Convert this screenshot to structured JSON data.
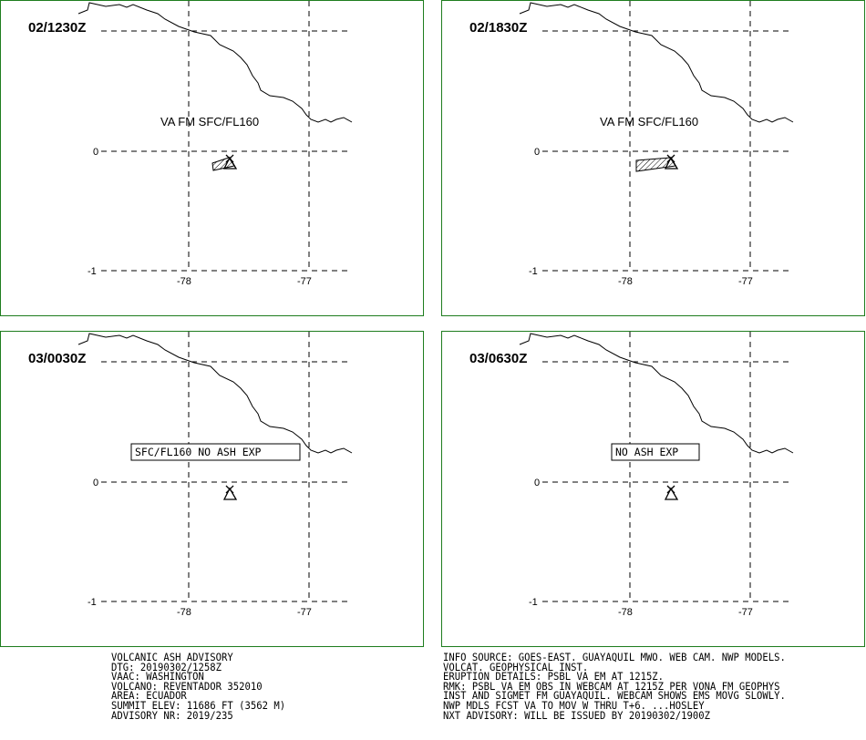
{
  "panels": [
    {
      "time": "02/1230Z",
      "ash_label": "VA FM SFC/FL160",
      "boxed": false,
      "has_ash": true,
      "plume": "small"
    },
    {
      "time": "02/1830Z",
      "ash_label": "VA FM SFC/FL160",
      "boxed": false,
      "has_ash": true,
      "plume": "large"
    },
    {
      "time": "03/0030Z",
      "ash_label": "SFC/FL160 NO ASH EXP",
      "boxed": true,
      "has_ash": false,
      "plume": "none"
    },
    {
      "time": "03/0630Z",
      "ash_label": "NO ASH EXP",
      "boxed": true,
      "has_ash": false,
      "plume": "none"
    }
  ],
  "axes": {
    "lat_labels": [
      "0",
      "-1"
    ],
    "lon_labels": [
      "-78",
      "-77"
    ]
  },
  "advisory_left": [
    "VOLCANIC ASH ADVISORY",
    "DTG: 20190302/1258Z",
    "VAAC: WASHINGTON",
    "VOLCANO: REVENTADOR 352010",
    "AREA: ECUADOR",
    "SUMMIT ELEV: 11686 FT (3562 M)",
    "ADVISORY NR: 2019/235"
  ],
  "advisory_right": [
    "INFO SOURCE: GOES-EAST. GUAYAQUIL MWO. WEB CAM. NWP MODELS.",
    "VOLCAT. GEOPHYSICAL INST.",
    "ERUPTION DETAILS: PSBL VA EM AT 1215Z.",
    "RMK: PSBL VA EM OBS IN WEBCAM AT 1215Z PER VONA FM GEOPHYS",
    "INST AND SIGMET FM GUAYAQUIL. WEBCAM SHOWS EMS MOVG SLOWLY.",
    "NWP MDLS FCST VA TO MOV W THRU T+6. ...HOSLEY",
    "NXT ADVISORY: WILL BE ISSUED BY 20190302/1900Z"
  ],
  "colors": {
    "frame": "#1e7d1e",
    "ink": "#000000"
  }
}
